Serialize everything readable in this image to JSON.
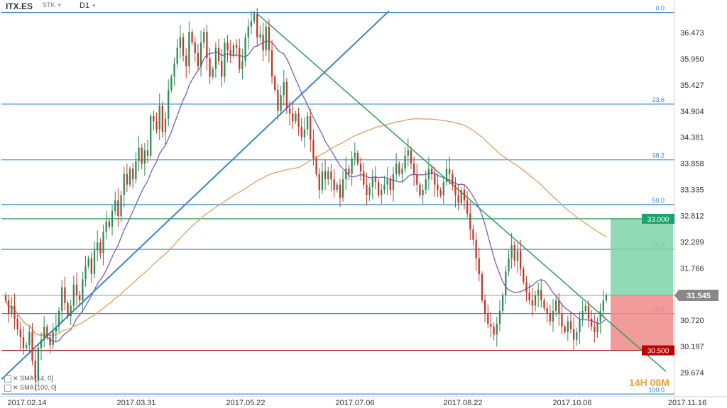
{
  "header": {
    "symbol": "ITX.ES",
    "type": "STK",
    "timeframe": "D1"
  },
  "indicators": [
    {
      "label": "SMA [14, 0]"
    },
    {
      "label": "SMA [100, 0]"
    }
  ],
  "timer": "14H 08M",
  "colors": {
    "fib": "#3a86c8",
    "trend": "#2f9e5a",
    "sma14": "#7a5bbf",
    "sma100": "#e0a060",
    "up": "#2e8b57",
    "down": "#c0392b",
    "tp_fill": "#7dd3a8",
    "sl_fill": "#ef8a8a",
    "tp_tag": "#1aa36b",
    "sl_tag": "#c00000",
    "price_tag": "#888888"
  },
  "chart_data": {
    "type": "candlestick",
    "x_ticks": [
      "2017.02.14",
      "2017.03.31",
      "2017.05.22",
      "2017.07.06",
      "2017.08.22",
      "2017.10.06",
      "2017.11.16"
    ],
    "y_ticks": [
      "36.473",
      "35.950",
      "35.427",
      "34.904",
      "34.381",
      "33.858",
      "33.335",
      "32.812",
      "32.289",
      "31.766",
      "31.243",
      "30.720",
      "30.197",
      "29.674"
    ],
    "ylim": [
      29.62,
      37.05
    ],
    "fib_levels": [
      {
        "label": "0.0",
        "price": 36.92
      },
      {
        "label": "23.6",
        "price": 35.18
      },
      {
        "label": "38.2",
        "price": 34.12
      },
      {
        "label": "50.0",
        "price": 33.27
      },
      {
        "label": "61.8",
        "price": 32.42
      },
      {
        "label": "78.6",
        "price": 31.2
      },
      {
        "label": "100.0",
        "price": 29.67
      }
    ],
    "current_price": "31.545",
    "take_profit": "33.000",
    "stop_loss": "30.500",
    "series": [
      {
        "name": "ITX.ES",
        "close": [
          31.45,
          31.2,
          31.35,
          31.1,
          30.9,
          30.75,
          30.55,
          30.6,
          30.85,
          30.3,
          29.95,
          30.55,
          30.7,
          30.95,
          30.75,
          30.6,
          30.85,
          30.95,
          31.25,
          31.7,
          31.4,
          31.15,
          31.35,
          31.75,
          31.55,
          31.45,
          31.85,
          32.1,
          32.25,
          31.95,
          32.4,
          32.55,
          32.35,
          32.75,
          32.95,
          32.85,
          33.15,
          33.35,
          33.05,
          33.45,
          33.85,
          33.65,
          33.95,
          33.75,
          34.1,
          34.35,
          34.05,
          34.3,
          34.2,
          34.95,
          34.85,
          34.7,
          35.15,
          34.65,
          34.9,
          35.45,
          35.7,
          35.95,
          36.25,
          36.45,
          36.1,
          35.9,
          36.55,
          36.35,
          36.15,
          35.9,
          36.35,
          36.55,
          36.05,
          35.7,
          35.85,
          36.25,
          36.0,
          35.7,
          36.35,
          36.2,
          36.1,
          36.3,
          36.25,
          35.85,
          36.0,
          36.45,
          36.65,
          36.75,
          36.9,
          36.45,
          36.5,
          36.2,
          36.65,
          36.2,
          35.7,
          35.45,
          35.05,
          35.35,
          35.6,
          35.1,
          35.0,
          34.85,
          35.0,
          34.75,
          34.55,
          34.7,
          34.95,
          34.5,
          34.15,
          33.85,
          33.55,
          33.9,
          33.75,
          33.9,
          33.75,
          33.55,
          33.65,
          33.4,
          33.75,
          33.95,
          33.85,
          34.15,
          34.25,
          34.05,
          33.9,
          33.65,
          33.45,
          33.6,
          33.8,
          33.7,
          33.45,
          33.55,
          33.65,
          33.75,
          33.55,
          33.85,
          34.05,
          33.85,
          33.95,
          34.2,
          34.3,
          34.05,
          33.85,
          33.65,
          33.45,
          33.55,
          33.75,
          33.95,
          33.85,
          33.65,
          33.55,
          33.45,
          33.7,
          33.95,
          33.85,
          33.65,
          33.45,
          33.3,
          33.55,
          33.35,
          33.1,
          32.8,
          32.6,
          32.25,
          31.95,
          31.45,
          31.2,
          31.0,
          30.95,
          30.8,
          31.0,
          31.25,
          31.55,
          32.0,
          32.25,
          32.5,
          32.2,
          32.4,
          32.05,
          31.8,
          31.6,
          31.45,
          31.35,
          31.55,
          31.65,
          31.45,
          31.3,
          31.2,
          31.05,
          31.25,
          31.45,
          31.2,
          30.95,
          30.85,
          31.05,
          30.9,
          30.7,
          30.85,
          31.1,
          31.25,
          31.35,
          31.1,
          30.95,
          30.85,
          31.05,
          31.25,
          31.45,
          31.545
        ]
      }
    ],
    "sma14_name": "SMA [14, 0]",
    "sma100_name": "SMA [100, 0]"
  }
}
